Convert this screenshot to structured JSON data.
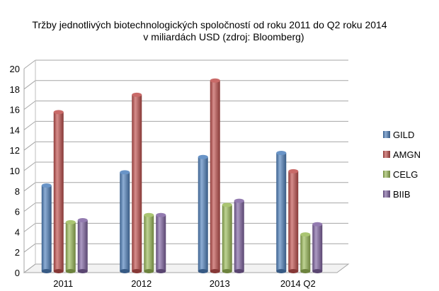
{
  "chart_data": {
    "type": "bar",
    "title": "Tržby jednotlivých biotechnologických spoločností od roku 2011 do Q2 roku 2014",
    "subtitle": "v miliardách USD (zdroj: Bloomberg)",
    "categories": [
      "2011",
      "2012",
      "2013",
      "2014 Q2"
    ],
    "series": [
      {
        "name": "GILD",
        "values": [
          8.4,
          9.7,
          11.2,
          11.6
        ],
        "color": "#4f81bd"
      },
      {
        "name": "AMGN",
        "values": [
          15.6,
          17.3,
          18.7,
          9.8
        ],
        "color": "#c0504d"
      },
      {
        "name": "CELG",
        "values": [
          4.8,
          5.5,
          6.5,
          3.6
        ],
        "color": "#9bbb59"
      },
      {
        "name": "BIIB",
        "values": [
          5.0,
          5.5,
          6.9,
          4.6
        ],
        "color": "#8064a2"
      }
    ],
    "xlabel": "",
    "ylabel": "",
    "ylim": [
      0,
      20
    ],
    "yticks": [
      "0",
      "2",
      "4",
      "6",
      "8",
      "10",
      "12",
      "14",
      "16",
      "18",
      "20"
    ],
    "grid": true,
    "legend_position": "right"
  }
}
